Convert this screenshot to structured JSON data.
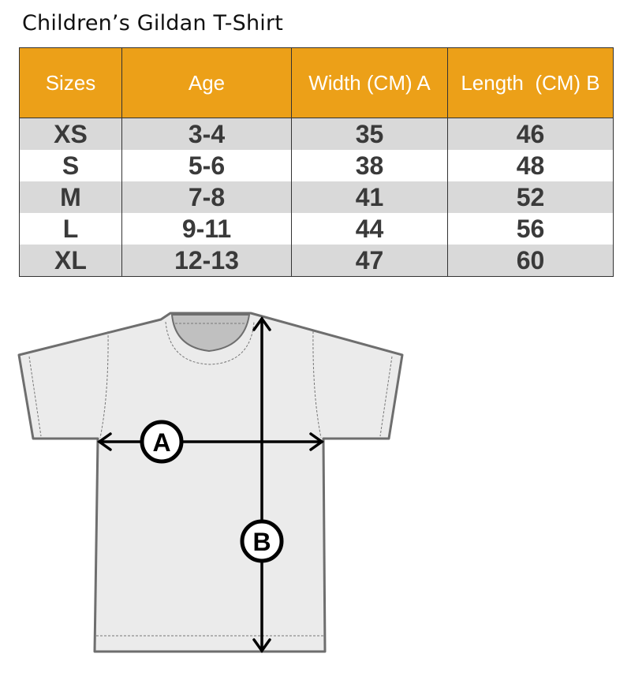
{
  "title": "Children’s Gildan T-Shirt",
  "table": {
    "headers": [
      "Sizes",
      "Age",
      "Width (CM) A",
      "Length  (CM) B"
    ],
    "rows": [
      [
        "XS",
        "3-4",
        "35",
        "46"
      ],
      [
        "S",
        "5-6",
        "38",
        "48"
      ],
      [
        "M",
        "7-8",
        "41",
        "52"
      ],
      [
        "L",
        "9-11",
        "44",
        "56"
      ],
      [
        "XL",
        "12-13",
        "47",
        "60"
      ]
    ]
  },
  "diagram": {
    "label_a": "A",
    "label_b": "B"
  },
  "colors": {
    "header": "#eca018",
    "row_alt": "#d9d9d9",
    "shirt": "#ebebeb"
  }
}
